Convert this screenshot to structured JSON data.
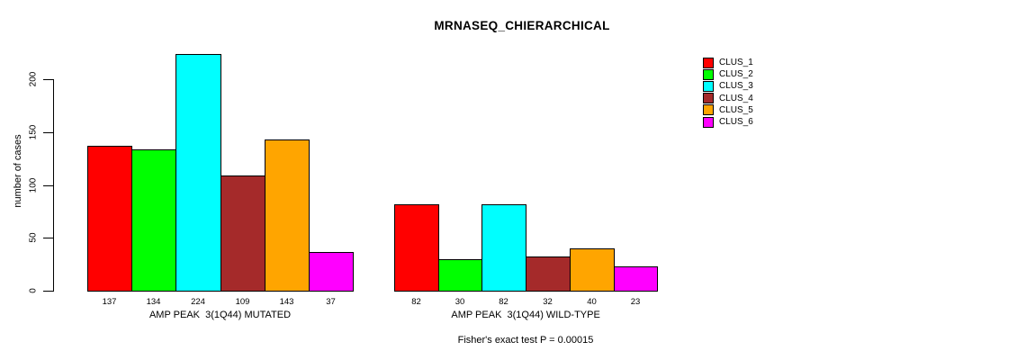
{
  "chart_data": {
    "type": "bar",
    "title": "MRNASEQ_CHIERARCHICAL",
    "ylabel": "number of cases",
    "yticks": [
      0,
      50,
      100,
      150,
      200
    ],
    "ylim": [
      0,
      224
    ],
    "grid": false,
    "legend_position": "right",
    "series": [
      {
        "name": "CLUS_1",
        "color": "#FF0000"
      },
      {
        "name": "CLUS_2",
        "color": "#00FF00"
      },
      {
        "name": "CLUS_3",
        "color": "#00FFFF"
      },
      {
        "name": "CLUS_4",
        "color": "#A52A2A"
      },
      {
        "name": "CLUS_5",
        "color": "#FFA500"
      },
      {
        "name": "CLUS_6",
        "color": "#FF00FF"
      }
    ],
    "groups": [
      {
        "label": "AMP PEAK  3(1Q44) MUTATED",
        "values": [
          137,
          134,
          224,
          109,
          143,
          37
        ]
      },
      {
        "label": "AMP PEAK  3(1Q44) WILD-TYPE",
        "values": [
          82,
          30,
          82,
          32,
          40,
          23
        ]
      }
    ],
    "bar_value_labels_shown": true,
    "annotation": "Fisher's exact test P = 0.00015"
  }
}
